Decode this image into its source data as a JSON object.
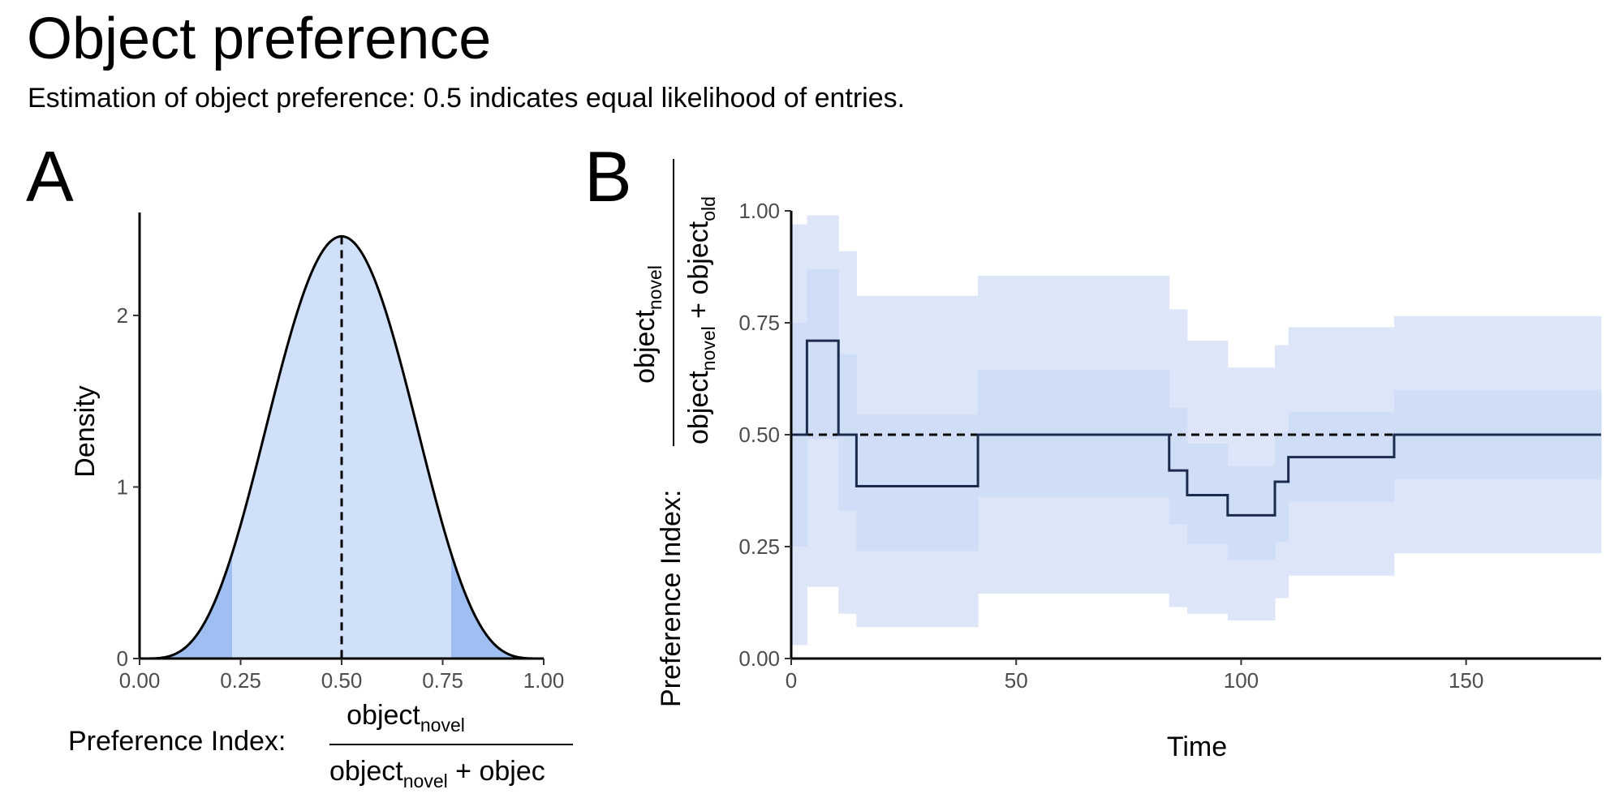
{
  "title": "Object preference",
  "subtitle": "Estimation of object preference: 0.5 indicates equal likelihood of entries.",
  "colors": {
    "band_outer": "#dde6f8",
    "band_inner": "#cfddf7",
    "density_fill": "#d0e0f9",
    "tail_fill": "#9fbef1",
    "line": "#1a2b4d",
    "axis": "#000000"
  },
  "chart_data": [
    {
      "tag": "A",
      "type": "area",
      "distribution": "beta",
      "shape": [
        5,
        5
      ],
      "mode_label": "",
      "xlim": [
        0,
        1
      ],
      "ylim": [
        0,
        2.6
      ],
      "xticks": [
        "0.00",
        "0.25",
        "0.50",
        "0.75",
        "1.00"
      ],
      "yticks": [
        "0",
        "1",
        "2"
      ],
      "ylabel": "Density",
      "xlabel_prefix": "Preference Index:",
      "xlabel_num": "object",
      "xlabel_num_sub": "novel",
      "xlabel_den_a": "object",
      "xlabel_den_a_sub": "novel",
      "xlabel_den_b": " + objec",
      "tails": [
        0.229,
        0.771
      ],
      "reference_line": 0.5,
      "grid": false
    },
    {
      "tag": "B",
      "type": "line",
      "xlim": [
        0,
        180
      ],
      "ylim": [
        0,
        1
      ],
      "xticks": [
        "0",
        "50",
        "100",
        "150"
      ],
      "yticks": [
        "0.00",
        "0.25",
        "0.50",
        "0.75",
        "1.00"
      ],
      "xlabel": "Time",
      "ylabel_prefix": "Preference Index:",
      "ylabel_num": "object",
      "ylabel_num_sub": "novel",
      "ylabel_den_a": "object",
      "ylabel_den_a_sub": "novel",
      "ylabel_den_b": " + object",
      "ylabel_den_b_sub": "old",
      "reference_line": 0.5,
      "grid": false,
      "steps": [
        {
          "x0": 0,
          "x1": 3.5,
          "y": 0.5,
          "lo95": 0.03,
          "hi95": 0.97,
          "lo50": 0.25,
          "hi50": 0.75
        },
        {
          "x0": 3.5,
          "x1": 10.5,
          "y": 0.71,
          "lo95": 0.16,
          "hi95": 0.99,
          "lo50": 0.49,
          "hi50": 0.87
        },
        {
          "x0": 10.5,
          "x1": 14.5,
          "y": 0.5,
          "lo95": 0.1,
          "hi95": 0.91,
          "lo50": 0.33,
          "hi50": 0.68
        },
        {
          "x0": 14.5,
          "x1": 41.5,
          "y": 0.385,
          "lo95": 0.07,
          "hi95": 0.81,
          "lo50": 0.24,
          "hi50": 0.545
        },
        {
          "x0": 41.5,
          "x1": 84,
          "y": 0.5,
          "lo95": 0.145,
          "hi95": 0.855,
          "lo50": 0.36,
          "hi50": 0.645
        },
        {
          "x0": 84,
          "x1": 88,
          "y": 0.42,
          "lo95": 0.115,
          "hi95": 0.78,
          "lo50": 0.3,
          "hi50": 0.56
        },
        {
          "x0": 88,
          "x1": 97,
          "y": 0.365,
          "lo95": 0.1,
          "hi95": 0.71,
          "lo50": 0.255,
          "hi50": 0.48
        },
        {
          "x0": 97,
          "x1": 107.5,
          "y": 0.32,
          "lo95": 0.085,
          "hi95": 0.65,
          "lo50": 0.22,
          "hi50": 0.43
        },
        {
          "x0": 107.5,
          "x1": 110.5,
          "y": 0.395,
          "lo95": 0.135,
          "hi95": 0.7,
          "lo50": 0.26,
          "hi50": 0.505
        },
        {
          "x0": 110.5,
          "x1": 134,
          "y": 0.45,
          "lo95": 0.185,
          "hi95": 0.74,
          "lo50": 0.35,
          "hi50": 0.55
        },
        {
          "x0": 134,
          "x1": 180,
          "y": 0.5,
          "lo95": 0.235,
          "hi95": 0.765,
          "lo50": 0.4,
          "hi50": 0.6
        }
      ]
    }
  ]
}
